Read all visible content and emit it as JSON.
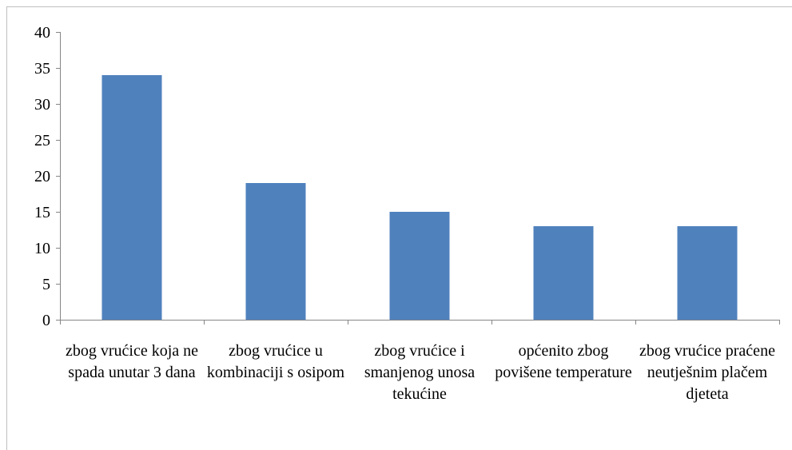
{
  "chart_data": {
    "type": "bar",
    "categories": [
      "zbog vrućice koja ne spada unutar 3 dana",
      "zbog vrućice u kombinaciji s osipom",
      "zbog vrućice i smanjenog unosa tekućine",
      "općenito zbog povišene temperature",
      "zbog vrućice praćene neutješnim plačem djeteta"
    ],
    "values": [
      34,
      19,
      15,
      13,
      13
    ],
    "color": "#4f81bd",
    "ylim": [
      0,
      40
    ],
    "yticks": [
      0,
      5,
      10,
      15,
      20,
      25,
      30,
      35,
      40
    ],
    "grid": false
  }
}
